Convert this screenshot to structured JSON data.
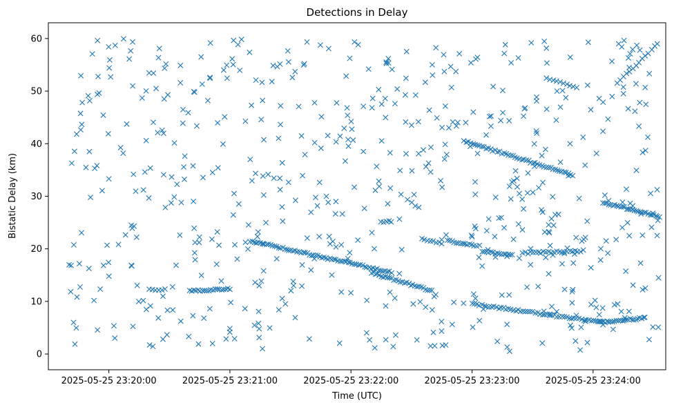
{
  "chart_data": {
    "type": "scatter",
    "title": "Detections in Delay",
    "xlabel": "Time (UTC)",
    "ylabel": "Bistatic Delay (km)",
    "marker": "x",
    "color": "#1f77b4",
    "x_unit": "seconds after 2025-05-25 23:19:40 UTC",
    "xlim": [
      -10,
      296
    ],
    "ylim": [
      -3,
      63
    ],
    "x_ticks": [
      {
        "value": 20,
        "label": "2025-05-25 23:20:00"
      },
      {
        "value": 80,
        "label": "2025-05-25 23:21:00"
      },
      {
        "value": 140,
        "label": "2025-05-25 23:22:00"
      },
      {
        "value": 200,
        "label": "2025-05-25 23:23:00"
      },
      {
        "value": 260,
        "label": "2025-05-25 23:24:00"
      }
    ],
    "y_ticks": [
      0,
      10,
      20,
      30,
      40,
      50,
      60
    ],
    "grid": false,
    "tracks": [
      {
        "t_start": 90,
        "t_end": 160,
        "d_start": 21.5,
        "d_end": 15.5,
        "n": 70
      },
      {
        "t_start": 150,
        "t_end": 180,
        "d_start": 15.5,
        "d_end": 12.0,
        "n": 30
      },
      {
        "t_start": 188,
        "t_end": 202,
        "d_start": 21.5,
        "d_end": 20.5,
        "n": 14
      },
      {
        "t_start": 205,
        "t_end": 220,
        "d_start": 19.5,
        "d_end": 18.8,
        "n": 15
      },
      {
        "t_start": 225,
        "t_end": 255,
        "d_start": 19.2,
        "d_end": 19.6,
        "n": 24
      },
      {
        "t_start": 196,
        "t_end": 250,
        "d_start": 40.5,
        "d_end": 34.0,
        "n": 50
      },
      {
        "t_start": 200,
        "t_end": 265,
        "d_start": 9.5,
        "d_end": 6.0,
        "n": 55
      },
      {
        "t_start": 263,
        "t_end": 285,
        "d_start": 6.0,
        "d_end": 6.8,
        "n": 24
      },
      {
        "t_start": 265,
        "t_end": 293,
        "d_start": 28.8,
        "d_end": 26.2,
        "n": 30
      },
      {
        "t_start": 60,
        "t_end": 80,
        "d_start": 12.0,
        "d_end": 12.4,
        "n": 20
      },
      {
        "t_start": 40,
        "t_end": 48,
        "d_start": 12.2,
        "d_end": 12.2,
        "n": 6
      },
      {
        "t_start": 155,
        "t_end": 160,
        "d_start": 25.2,
        "d_end": 25.2,
        "n": 5
      },
      {
        "t_start": 237,
        "t_end": 252,
        "d_start": 52.5,
        "d_end": 50.5,
        "n": 10
      },
      {
        "t_start": 272,
        "t_end": 292,
        "d_start": 51.5,
        "d_end": 59.0,
        "n": 14
      },
      {
        "t_start": 175,
        "t_end": 185,
        "d_start": 21.8,
        "d_end": 21.0,
        "n": 8
      }
    ],
    "clutter": {
      "t_range": [
        0,
        293
      ],
      "d_range": [
        0.5,
        60
      ],
      "n": 620,
      "note": "uniformly scattered detections across the full time and delay span"
    }
  }
}
